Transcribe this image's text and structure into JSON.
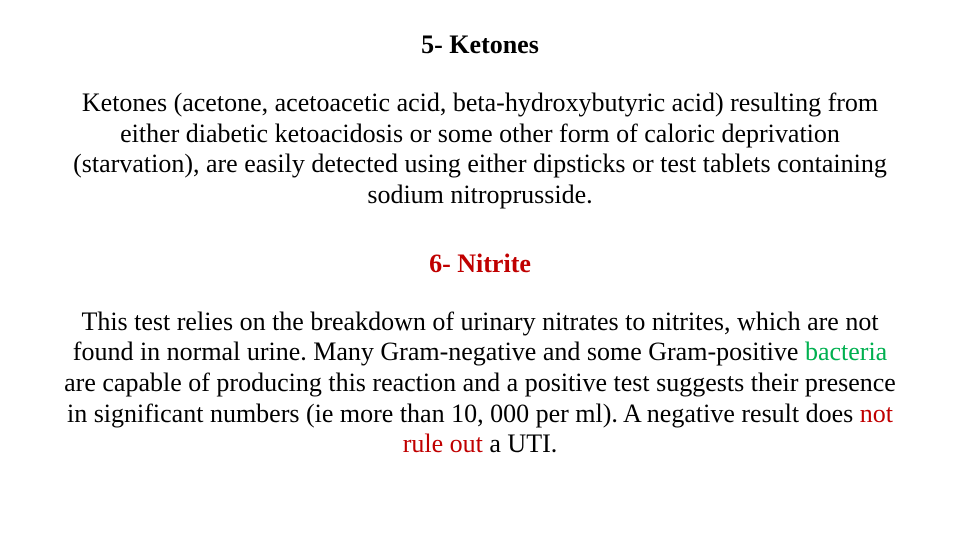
{
  "colors": {
    "text": "#000000",
    "accent_red": "#c00000",
    "accent_green": "#00b050",
    "background": "#ffffff"
  },
  "typography": {
    "font_family": "Times New Roman",
    "heading_fontsize_pt": 20,
    "body_fontsize_pt": 20,
    "heading_weight": "bold",
    "body_weight": "normal",
    "alignment": "center"
  },
  "section1": {
    "heading": "5- Ketones",
    "body": "Ketones (acetone, acetoacetic acid, beta-hydroxybutyric acid) resulting from either diabetic ketoacidosis or some other form of caloric deprivation (starvation), are easily detected using either dipsticks or test tablets containing sodium nitroprusside."
  },
  "section2": {
    "heading": "6- Nitrite",
    "body_parts": {
      "p1": "This test relies on the breakdown of urinary nitrates to nitrites, which are not found in normal urine. Many Gram-negative and some Gram-positive ",
      "bacteria": "bacteria",
      "p2": " are capable of producing this reaction and a positive test suggests their presence in significant numbers (ie more than 10, 000 per ml). A negative result does ",
      "not_ruleout": "not rule out",
      "p3": " a UTI."
    }
  }
}
